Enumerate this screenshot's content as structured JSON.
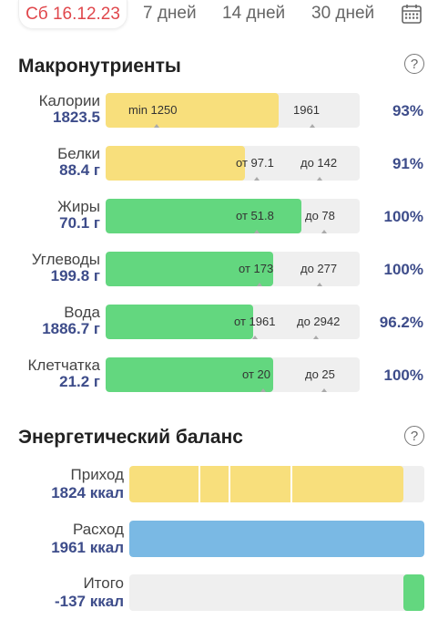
{
  "tabs": {
    "date": "Сб 16.12.23",
    "week": "7 дней",
    "two_weeks": "14 дней",
    "month": "30 дней"
  },
  "macros": {
    "title": "Макронутриенты",
    "help": "?",
    "rows": [
      {
        "label": "Калории",
        "value": "1823.5",
        "from": "min 1250",
        "to": "1961",
        "pct": "93%",
        "fill": 0.68,
        "color": "#f8df7c"
      },
      {
        "label": "Белки",
        "value": "88.4 г",
        "from": "от 97.1",
        "to": "до 142",
        "pct": "91%",
        "fill": 0.55,
        "color": "#f8df7c"
      },
      {
        "label": "Жиры",
        "value": "70.1 г",
        "from": "от 51.8",
        "to": "до 78",
        "pct": "100%",
        "fill": 0.77,
        "color": "#63d77f"
      },
      {
        "label": "Углеводы",
        "value": "199.8 г",
        "from": "от 173",
        "to": "до 277",
        "pct": "100%",
        "fill": 0.66,
        "color": "#63d77f"
      },
      {
        "label": "Вода",
        "value": "1886.7 г",
        "from": "от 1961",
        "to": "до 2942",
        "pct": "96.2%",
        "fill": 0.58,
        "color": "#63d77f"
      },
      {
        "label": "Клетчатка",
        "value": "21.2 г",
        "from": "от 20",
        "to": "до 25",
        "pct": "100%",
        "fill": 0.66,
        "color": "#63d77f"
      }
    ]
  },
  "energy": {
    "title": "Энергетический баланс",
    "help": "?",
    "rows": [
      {
        "label": "Приход",
        "value": "1824 ккал",
        "fill": 0.93,
        "color": "#f8df7c"
      },
      {
        "label": "Расход",
        "value": "1961 ккал",
        "fill": 1.0,
        "color": "#7ab9e4"
      },
      {
        "label": "Итого",
        "value": "-137 ккал",
        "fill": 0.07,
        "color": "#63d77f"
      }
    ]
  }
}
